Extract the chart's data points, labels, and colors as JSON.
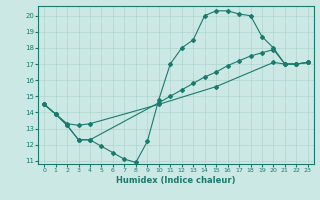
{
  "xlabel": "Humidex (Indice chaleur)",
  "bg_color": "#cce8e5",
  "line_color": "#1a7a6e",
  "grid_color": "#aed4cf",
  "xlim": [
    -0.5,
    23.5
  ],
  "ylim": [
    10.8,
    20.6
  ],
  "xticks": [
    0,
    1,
    2,
    3,
    4,
    5,
    6,
    7,
    8,
    9,
    10,
    11,
    12,
    13,
    14,
    15,
    16,
    17,
    18,
    19,
    20,
    21,
    22,
    23
  ],
  "yticks": [
    11,
    12,
    13,
    14,
    15,
    16,
    17,
    18,
    19,
    20
  ],
  "series1_x": [
    0,
    1,
    2,
    3,
    4,
    5,
    6,
    7,
    8,
    9,
    10,
    11,
    12,
    13,
    14,
    15,
    16,
    17,
    18,
    19,
    20,
    21,
    22,
    23
  ],
  "series1_y": [
    14.5,
    13.9,
    13.2,
    12.3,
    12.3,
    11.9,
    11.5,
    11.1,
    10.9,
    12.2,
    14.8,
    17.0,
    18.0,
    18.5,
    20.0,
    20.3,
    20.3,
    20.1,
    20.0,
    18.7,
    18.0,
    17.0,
    17.0,
    17.1
  ],
  "series2_x": [
    0,
    1,
    2,
    3,
    4,
    10,
    11,
    12,
    13,
    14,
    15,
    16,
    17,
    18,
    19,
    20,
    21,
    22,
    23
  ],
  "series2_y": [
    14.5,
    13.9,
    13.2,
    12.3,
    12.3,
    14.6,
    15.0,
    15.4,
    15.8,
    16.2,
    16.5,
    16.9,
    17.2,
    17.5,
    17.7,
    17.9,
    17.0,
    17.0,
    17.1
  ],
  "series3_x": [
    0,
    1,
    2,
    3,
    4,
    10,
    15,
    20,
    21,
    22,
    23
  ],
  "series3_y": [
    14.5,
    13.9,
    13.3,
    13.2,
    13.3,
    14.5,
    15.6,
    17.1,
    17.0,
    17.0,
    17.1
  ]
}
